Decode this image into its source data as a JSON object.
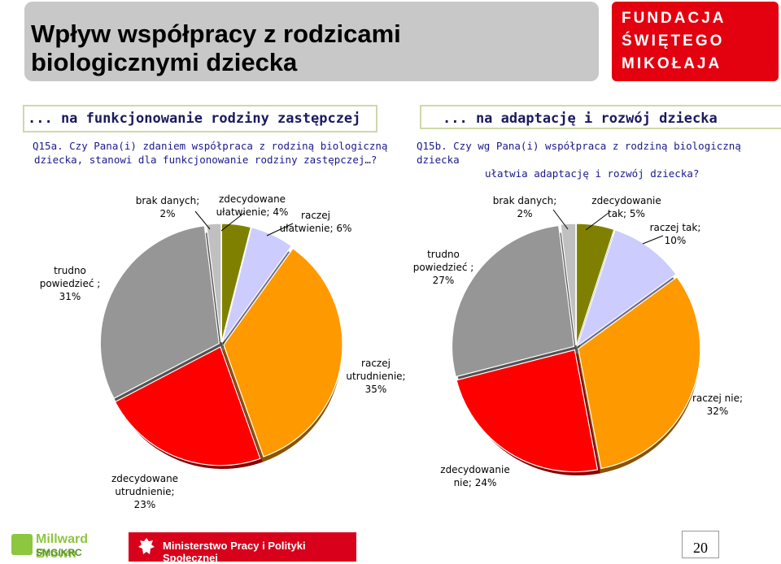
{
  "header": {
    "title_line1": "Wpływ współpracy z rodzicami",
    "title_line2": "biologicznymi dziecka",
    "logo_line1": "FUNDACJA",
    "logo_line2": "ŚWIĘTEGO",
    "logo_line3": "MIKOŁAJA"
  },
  "colors": {
    "zdecydowanie_tak": "#808000",
    "raczej_tak": "#ccccff",
    "raczej_nie": "#ff9900",
    "zdecydowanie_nie": "#ff0000",
    "trudno": "#969696",
    "brak": "#c0c0c0"
  },
  "chart_data": [
    {
      "type": "pie",
      "section_title": "... na funkcjonowanie rodziny zastępczej",
      "question_line1": "Q15a. Czy Pana(i) zdaniem współpraca z rodziną biologiczną",
      "question_line2": "dziecka, stanowi dla funkcjonowanie rodziny zastępczej…?",
      "slices": [
        {
          "label_line1": "zdecydowane",
          "label_line2": "ułatwienie; 4%",
          "value": 4,
          "color": "#808000"
        },
        {
          "label_line1": "raczej",
          "label_line2": "ułatwienie; 6%",
          "value": 6,
          "color": "#ccccff"
        },
        {
          "label_line1": "raczej",
          "label_line2": "utrudnienie;",
          "label_line3": "35%",
          "value": 35,
          "color": "#ff9900"
        },
        {
          "label_line1": "zdecydowane",
          "label_line2": "utrudnienie;",
          "label_line3": "23%",
          "value": 23,
          "color": "#ff0000"
        },
        {
          "label_line1": "trudno",
          "label_line2": "powiedzieć ;",
          "label_line3": "31%",
          "value": 31,
          "color": "#969696"
        },
        {
          "label_line1": "brak danych;",
          "label_line2": "2%",
          "value": 2,
          "color": "#c0c0c0"
        }
      ]
    },
    {
      "type": "pie",
      "section_title": "... na adaptację i rozwój dziecka",
      "question_line1": "Q15b. Czy wg Pana(i) współpraca z rodziną biologiczną dziecka",
      "question_line2": "ułatwia adaptację i rozwój dziecka?",
      "slices": [
        {
          "label_line1": "zdecydowanie",
          "label_line2": "tak; 5%",
          "value": 5,
          "color": "#808000"
        },
        {
          "label_line1": "raczej tak;",
          "label_line2": "10%",
          "value": 10,
          "color": "#ccccff"
        },
        {
          "label_line1": "raczej nie;",
          "label_line2": "32%",
          "value": 32,
          "color": "#ff9900"
        },
        {
          "label_line1": "zdecydowanie",
          "label_line2": "nie; 24%",
          "value": 24,
          "color": "#ff0000"
        },
        {
          "label_line1": "trudno",
          "label_line2": "powiedzieć ;",
          "label_line3": "27%",
          "value": 27,
          "color": "#969696"
        },
        {
          "label_line1": "brak danych;",
          "label_line2": "2%",
          "value": 2,
          "color": "#c0c0c0"
        }
      ]
    }
  ],
  "footer": {
    "millward_name": "Millward Brown",
    "millward_sub": "SMG/KRC",
    "ministry": "Ministerstwo Pracy i Polityki Społecznej",
    "page_number": "20"
  }
}
